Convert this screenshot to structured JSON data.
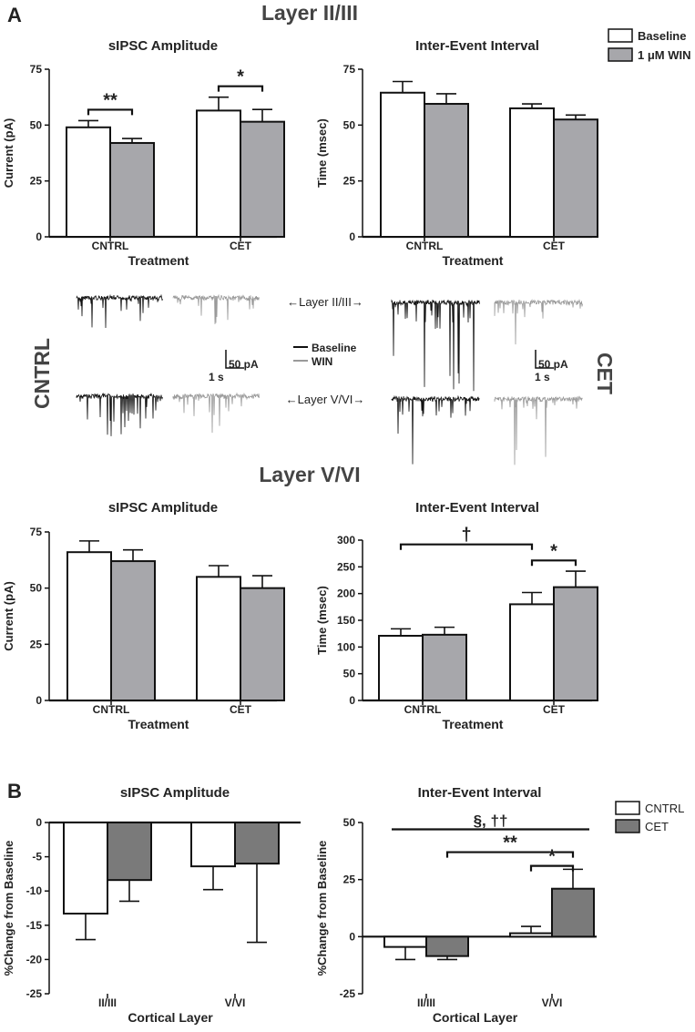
{
  "panel_a_label": "A",
  "panel_b_label": "B",
  "heading_top": "Layer II/III",
  "heading_mid": "Layer V/VI",
  "legend_a": {
    "items": [
      {
        "label": "Baseline",
        "color": "#ffffff"
      },
      {
        "label": "1 μM WIN",
        "color": "#a7a7ab"
      }
    ]
  },
  "legend_b": {
    "items": [
      {
        "label": "CNTRL",
        "color": "#ffffff"
      },
      {
        "label": "CET",
        "color": "#7a7a7a"
      }
    ]
  },
  "traces": {
    "top_label": "←Layer II/III→",
    "bottom_label": "←Layer V/VI→",
    "legend_baseline": "Baseline",
    "legend_win": "WIN",
    "scale_current": "50 pA",
    "scale_time": "1 s",
    "side_left": "CNTRL",
    "side_right": "CET",
    "baseline_color": "#111111",
    "win_color": "#9a9a9a"
  },
  "chart_data": [
    {
      "id": "a1",
      "type": "bar",
      "title": "sIPSC Amplitude",
      "xlabel": "Treatment",
      "ylabel": "Current (pA)",
      "categories": [
        "CNTRL",
        "CET"
      ],
      "ylim": [
        0,
        75
      ],
      "yticks": [
        "0",
        "25",
        "50",
        "75"
      ],
      "series": [
        {
          "name": "Baseline",
          "values": [
            49,
            56.5
          ],
          "errors": [
            3,
            6
          ],
          "color": "#ffffff"
        },
        {
          "name": "1 μM WIN",
          "values": [
            42,
            51.5
          ],
          "errors": [
            2,
            5.5
          ],
          "color": "#a7a7ab"
        }
      ],
      "annotations": [
        {
          "text": "**",
          "from": [
            0,
            0
          ],
          "to": [
            0,
            1
          ]
        },
        {
          "text": "*",
          "from": [
            1,
            0
          ],
          "to": [
            1,
            1
          ]
        }
      ]
    },
    {
      "id": "a2",
      "type": "bar",
      "title": "Inter-Event Interval",
      "xlabel": "Treatment",
      "ylabel": "Time (msec)",
      "categories": [
        "CNTRL",
        "CET"
      ],
      "ylim": [
        0,
        75
      ],
      "yticks": [
        "0",
        "25",
        "50",
        "75"
      ],
      "series": [
        {
          "name": "Baseline",
          "values": [
            64.5,
            57.5
          ],
          "errors": [
            5,
            2
          ],
          "color": "#ffffff"
        },
        {
          "name": "1 μM WIN",
          "values": [
            59.5,
            52.5
          ],
          "errors": [
            4.5,
            2
          ],
          "color": "#a7a7ab"
        }
      ],
      "annotations": []
    },
    {
      "id": "a3",
      "type": "bar",
      "title": "sIPSC Amplitude",
      "xlabel": "Treatment",
      "ylabel": "Current (pA)",
      "categories": [
        "CNTRL",
        "CET"
      ],
      "ylim": [
        0,
        75
      ],
      "yticks": [
        "0",
        "25",
        "50",
        "75"
      ],
      "series": [
        {
          "name": "Baseline",
          "values": [
            66,
            55
          ],
          "errors": [
            5,
            5
          ],
          "color": "#ffffff"
        },
        {
          "name": "1 μM WIN",
          "values": [
            62,
            50
          ],
          "errors": [
            5,
            5.5
          ],
          "color": "#a7a7ab"
        }
      ],
      "annotations": []
    },
    {
      "id": "a4",
      "type": "bar",
      "title": "Inter-Event Interval",
      "xlabel": "Treatment",
      "ylabel": "Time (msec)",
      "categories": [
        "CNTRL",
        "CET"
      ],
      "ylim": [
        0,
        300
      ],
      "yticks": [
        "0",
        "50",
        "100",
        "150",
        "200",
        "250",
        "300"
      ],
      "series": [
        {
          "name": "Baseline",
          "values": [
            121,
            180
          ],
          "errors": [
            13,
            22
          ],
          "color": "#ffffff"
        },
        {
          "name": "1 μM WIN",
          "values": [
            123,
            212
          ],
          "errors": [
            14,
            30
          ],
          "color": "#a7a7ab"
        }
      ],
      "annotations": [
        {
          "text": "†",
          "from": [
            0,
            -1
          ],
          "to": [
            1,
            0
          ]
        },
        {
          "text": "*",
          "from": [
            1,
            0
          ],
          "to": [
            1,
            1
          ]
        }
      ]
    },
    {
      "id": "b1",
      "type": "bar",
      "title": "sIPSC Amplitude",
      "xlabel": "Cortical Layer",
      "ylabel": "%Change from Baseline",
      "categories": [
        "II/III",
        "V/VI"
      ],
      "ylim": [
        -25,
        0
      ],
      "yticks": [
        "0",
        "-5",
        "-10",
        "-15",
        "-20",
        "-25"
      ],
      "series": [
        {
          "name": "CNTRL",
          "values": [
            -13.3,
            -6.4
          ],
          "errors": [
            3.8,
            3.4
          ],
          "color": "#ffffff"
        },
        {
          "name": "CET",
          "values": [
            -8.4,
            -6
          ],
          "errors": [
            3.1,
            11.5
          ],
          "color": "#7a7a7a"
        }
      ],
      "annotations": []
    },
    {
      "id": "b2",
      "type": "bar",
      "title": "Inter-Event Interval",
      "xlabel": "Cortical Layer",
      "ylabel": "%Change from Baseline",
      "categories": [
        "II/III",
        "V/VI"
      ],
      "ylim": [
        -25,
        50
      ],
      "yticks": [
        "-25",
        "0",
        "25",
        "50"
      ],
      "series": [
        {
          "name": "CNTRL",
          "values": [
            -4.5,
            1.5
          ],
          "errors": [
            5.5,
            3
          ],
          "color": "#ffffff"
        },
        {
          "name": "CET",
          "values": [
            -8.5,
            21
          ],
          "errors": [
            1.5,
            8.5
          ],
          "color": "#7a7a7a"
        }
      ],
      "annotations": [
        {
          "text": "§,  ††",
          "from": [
            0,
            -1
          ],
          "to": [
            1,
            2
          ]
        },
        {
          "text": "**",
          "from": [
            0,
            1
          ],
          "to": [
            1,
            1
          ]
        },
        {
          "text": "*",
          "from": [
            1,
            0
          ],
          "to": [
            1,
            1
          ]
        }
      ]
    }
  ]
}
